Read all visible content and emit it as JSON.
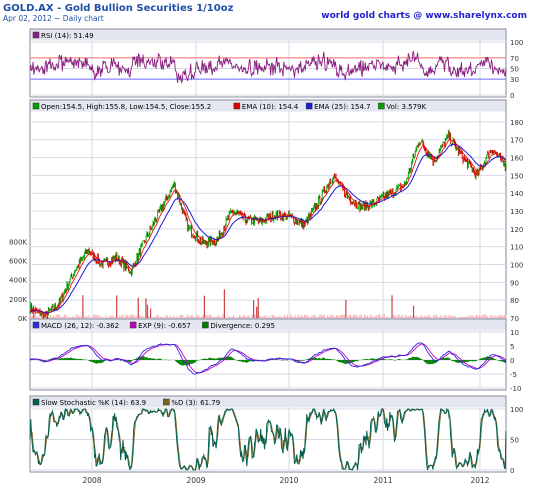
{
  "header": {
    "title": "GOLD.AX - Gold Bullion Securities 1/10oz",
    "subtitle": "Apr 02, 2012 ~ Daily chart",
    "brand": "world gold charts @ www.sharelynx.com"
  },
  "colors": {
    "title": "#1f4fa8",
    "brand": "#1f1fd0",
    "panel_border": "#8a8aa0",
    "grid": "#d7dae6",
    "legend_bg": "#e4e7f0",
    "price_up": "#00a000",
    "price_down": "#e00000",
    "ema10": "#e00000",
    "ema25": "#1a1ad8",
    "volume": "#ffb0b0",
    "volume_dark": "#d04040",
    "rsi": "#8a2080",
    "rsi_ob_line": "#ff7070",
    "rsi_os_line": "#7070ff",
    "macd": "#2a2ae0",
    "macd_exp": "#c000c0",
    "macd_hist": "#008000",
    "stoch_k": "#006050",
    "stoch_d": "#7a6020"
  },
  "x_axis_labels": [
    "2008",
    "2009",
    "2010",
    "2011",
    "2012"
  ],
  "chart_data": [
    {
      "type": "line",
      "panel": "rsi",
      "legend": [
        {
          "name": "RSI (14): 51.49"
        }
      ],
      "ylim": [
        0,
        100
      ],
      "yticks": [
        "100",
        "70",
        "50",
        "30",
        "0"
      ],
      "reference_lines": [
        70,
        30
      ],
      "series": [
        {
          "name": "RSI (14)",
          "last": 51.49
        }
      ]
    },
    {
      "type": "line",
      "panel": "price",
      "legend": [
        {
          "name": "Open:154.5, High:155.8, Low:154.5, Close:155.2"
        },
        {
          "name": "EMA (10): 154.4"
        },
        {
          "name": "EMA (25): 154.7"
        },
        {
          "name": "Vol: 3.579K"
        }
      ],
      "ylim": [
        70,
        185
      ],
      "yticks_right": [
        "180",
        "170",
        "160",
        "150",
        "140",
        "130",
        "120",
        "110",
        "100",
        "90",
        "80",
        "70"
      ],
      "volume_ylim": [
        0,
        900000
      ],
      "volume_ticks_left": [
        "800K",
        "600K",
        "400K",
        "200K",
        "0K"
      ],
      "x_anchor_dates": [
        "2007-04",
        "2007-07",
        "2007-10",
        "2008-01",
        "2008-03",
        "2008-05",
        "2008-08",
        "2008-09",
        "2008-10",
        "2008-11",
        "2009-02",
        "2009-04",
        "2009-05",
        "2009-08",
        "2009-11",
        "2009-12",
        "2010-02",
        "2010-04",
        "2010-06",
        "2010-07",
        "2010-09",
        "2010-11",
        "2011-01",
        "2011-02",
        "2011-04",
        "2011-06",
        "2011-08",
        "2011-09",
        "2011-10",
        "2011-11",
        "2011-12",
        "2012-01",
        "2012-02",
        "2012-03"
      ],
      "x_anchor_close": [
        76,
        71,
        78,
        95,
        108,
        100,
        104,
        96,
        114,
        130,
        145,
        120,
        112,
        114,
        130,
        125,
        124,
        128,
        127,
        122,
        135,
        150,
        138,
        132,
        135,
        140,
        145,
        170,
        158,
        172,
        160,
        150,
        165,
        155
      ],
      "series": [
        {
          "name": "Close",
          "last": 155.2
        },
        {
          "name": "EMA (10)",
          "last": 154.4
        },
        {
          "name": "EMA (25)",
          "last": 154.7
        },
        {
          "name": "Vol",
          "last": 3579
        }
      ]
    },
    {
      "type": "line",
      "panel": "macd",
      "legend": [
        {
          "name": "MACD (26, 12): -0.362"
        },
        {
          "name": "EXP (9): -0.657"
        },
        {
          "name": "Divergence: 0.295"
        }
      ],
      "ylim": [
        -10,
        10
      ],
      "yticks": [
        "10",
        "5",
        "0",
        "-5",
        "-10"
      ],
      "series": [
        {
          "name": "MACD (26, 12)",
          "last": -0.362
        },
        {
          "name": "EXP (9)",
          "last": -0.657
        },
        {
          "name": "Divergence",
          "last": 0.295
        }
      ]
    },
    {
      "type": "line",
      "panel": "stochastic",
      "legend": [
        {
          "name": "Slow Stochastic %K (14): 63.9"
        },
        {
          "name": "%D (3): 61.79"
        }
      ],
      "ylim": [
        0,
        100
      ],
      "yticks": [
        "100",
        "50",
        "0"
      ],
      "series": [
        {
          "name": "Slow Stochastic %K (14)",
          "last": 63.9
        },
        {
          "name": "%D (3)",
          "last": 61.79
        }
      ]
    }
  ]
}
